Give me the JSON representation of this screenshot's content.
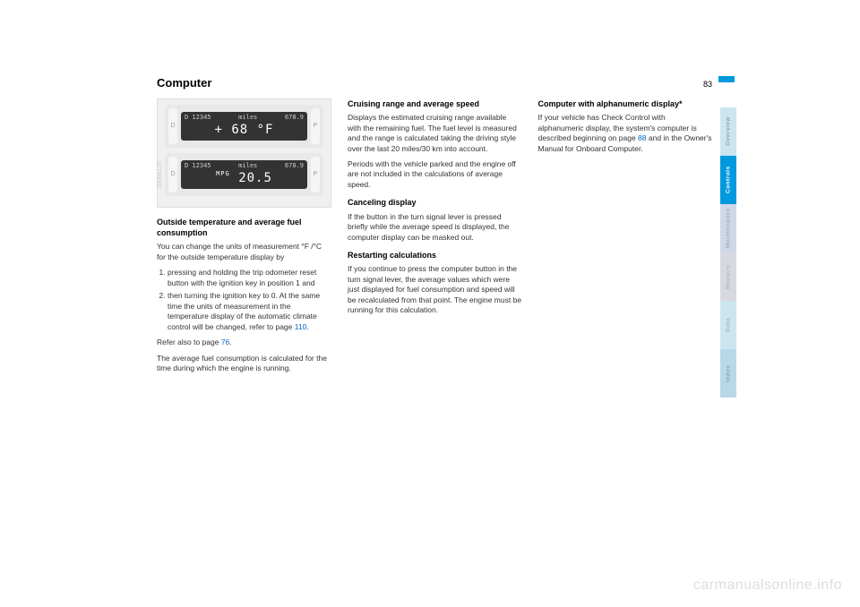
{
  "page": {
    "title": "Computer",
    "number": "83"
  },
  "dashboard": {
    "panel1": {
      "btn_left": "D",
      "btn_right": "P",
      "top_left": "D 12345",
      "top_mid": "miles",
      "top_right": "678.9",
      "main": "+ 68 °F"
    },
    "panel2": {
      "btn_left": "D",
      "btn_right": "P",
      "top_left": "D 12345",
      "top_mid": "miles",
      "top_right": "678.9",
      "label": "MPG",
      "main": "20.5"
    },
    "side_label": "390us128"
  },
  "col1": {
    "h1": "Outside temperature and average fuel consumption",
    "p1": "You can change the units of measurement °F /°C for the outside temperature display by",
    "li1": "pressing and holding the trip odometer reset button with the ignition key in position 1 and",
    "li2_a": "then turning the ignition key to 0. At the same time the units of measurement in the temperature display of the automatic climate control will be changed, refer to page ",
    "li2_link": "110",
    "li2_b": ".",
    "p2_a": "Refer also to page ",
    "p2_link": "76",
    "p2_b": ".",
    "p3": "The average fuel consumption is calculated for the time during which the engine is running."
  },
  "col2": {
    "h1": "Cruising range and average speed",
    "p1": "Displays the estimated cruising range available with the remaining fuel. The fuel level is measured and the range is calculated taking the driving style over the last 20 miles/30 km into account.",
    "p2": "Periods with the vehicle parked and the engine off are not included in the calculations of average speed.",
    "h2": "Canceling display",
    "p3": "If the button in the turn signal lever is pressed briefly while the average speed is displayed, the computer display can be masked out.",
    "h3": "Restarting calculations",
    "p4": "If you continue to press the computer button in the turn signal lever, the average values which were just displayed for fuel consumption and speed will be recalculated from that point. The engine must be running for this calculation."
  },
  "col3": {
    "h1": "Computer with alphanumeric display*",
    "p1_a": "If your vehicle has Check Control with alphanumeric display, the system's computer is described beginning on page ",
    "p1_link": "88",
    "p1_b": " and in the Owner's Manual for Onboard Computer."
  },
  "tabs": {
    "overview": "Overview",
    "controls": "Controls",
    "maintenance": "Maintenance",
    "repairs": "Repairs",
    "data": "Data",
    "index": "Index"
  },
  "watermark": "carmanualsonline.info"
}
